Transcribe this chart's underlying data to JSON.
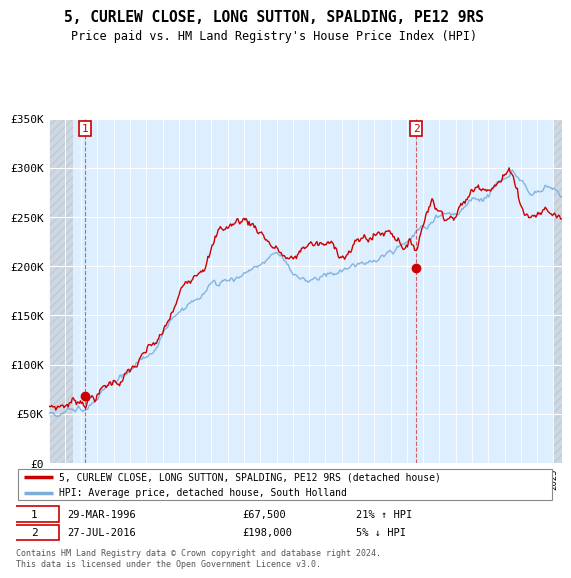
{
  "title": "5, CURLEW CLOSE, LONG SUTTON, SPALDING, PE12 9RS",
  "subtitle": "Price paid vs. HM Land Registry's House Price Index (HPI)",
  "ylim": [
    0,
    350000
  ],
  "yticks": [
    0,
    50000,
    100000,
    150000,
    200000,
    250000,
    300000,
    350000
  ],
  "ytick_labels": [
    "£0",
    "£50K",
    "£100K",
    "£150K",
    "£200K",
    "£250K",
    "£300K",
    "£350K"
  ],
  "legend_line1": "5, CURLEW CLOSE, LONG SUTTON, SPALDING, PE12 9RS (detached house)",
  "legend_line2": "HPI: Average price, detached house, South Holland",
  "sale1_date": "29-MAR-1996",
  "sale1_price": "£67,500",
  "sale1_hpi": "21% ↑ HPI",
  "sale2_date": "27-JUL-2016",
  "sale2_price": "£198,000",
  "sale2_hpi": "5% ↓ HPI",
  "footer": "Contains HM Land Registry data © Crown copyright and database right 2024.\nThis data is licensed under the Open Government Licence v3.0.",
  "red_color": "#cc0000",
  "blue_color": "#7aaddb",
  "blue_fill": "#ddeeff",
  "hatch_color": "#cccccc",
  "sale1_x": 1996.25,
  "sale1_y": 67500,
  "sale2_x": 2016.58,
  "sale2_y": 198000,
  "xmin": 1994.0,
  "xmax": 2025.5
}
